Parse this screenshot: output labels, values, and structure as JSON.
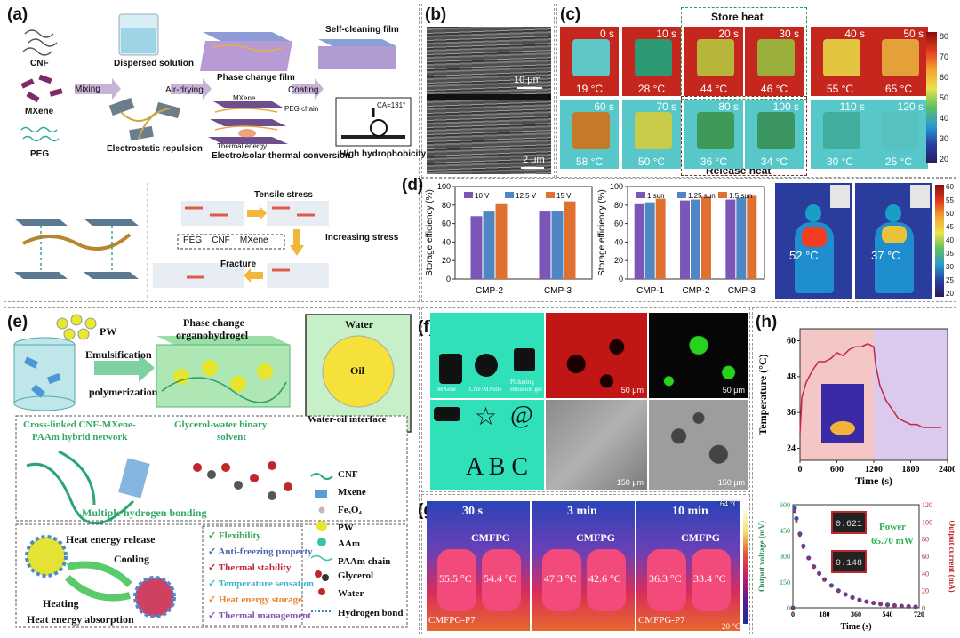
{
  "panel_a": {
    "label": "(a)",
    "materials": [
      "CNF",
      "MXene",
      "PEG"
    ],
    "steps": [
      "Mixing",
      "Air-drying",
      "Coating"
    ],
    "dispersed_solution": "Dispersed solution",
    "electrostatic": "Electrostatic repulsion",
    "phase_change_film": "Phase change film",
    "self_cleaning_film": "Self-cleaning film",
    "mxene_tag": "MXene",
    "peg_chain": "PEG chain",
    "thermal_energy": "Thermal energy",
    "conversion": "Electro/solar-thermal conversion",
    "contact_angle": "CA=131°",
    "hydrophobicity": "High hydrophobicity",
    "tensile": "Tensile stress",
    "increasing": "Increasing stress",
    "fracture": "Fracture",
    "legend": "PEG    CNF    MXene"
  },
  "panel_b": {
    "label": "(b)",
    "scale_top": "10 μm",
    "scale_bottom": "2 μm"
  },
  "panel_c": {
    "label": "(c)",
    "store": "Store heat",
    "release": "Release heat",
    "colorbar": [
      "80",
      "70",
      "60",
      "50",
      "40",
      "30",
      "20"
    ],
    "row1": [
      {
        "t": "0 s",
        "temp": "19 °C",
        "sq": "#5ec6c4"
      },
      {
        "t": "10 s",
        "temp": "28 °C",
        "sq": "#2e9a74"
      },
      {
        "t": "20 s",
        "temp": "44 °C",
        "sq": "#b6b63b"
      },
      {
        "t": "30 s",
        "temp": "46 °C",
        "sq": "#9aae3a"
      },
      {
        "t": "40 s",
        "temp": "55 °C",
        "sq": "#e2c43e"
      },
      {
        "t": "50 s",
        "temp": "65 °C",
        "sq": "#e4a13a"
      }
    ],
    "row2": [
      {
        "t": "60 s",
        "temp": "58 °C",
        "sq": "#c47a27"
      },
      {
        "t": "70 s",
        "temp": "50 °C",
        "sq": "#c9cc4b"
      },
      {
        "t": "80 s",
        "temp": "36 °C",
        "sq": "#3f9a58"
      },
      {
        "t": "100 s",
        "temp": "34 °C",
        "sq": "#3b9561"
      },
      {
        "t": "110 s",
        "temp": "30 °C",
        "sq": "#41ad9c"
      },
      {
        "t": "120 s",
        "temp": "25 °C",
        "sq": "#57c1c0"
      }
    ]
  },
  "panel_d": {
    "label": "(d)",
    "body_temps": [
      "52 °C",
      "37 °C"
    ],
    "body_bar": [
      "60",
      "55",
      "50",
      "45",
      "40",
      "35",
      "30",
      "25",
      "20"
    ]
  },
  "chart_data": [
    {
      "type": "bar",
      "title": "",
      "ylabel": "Storage efficiency (%)",
      "ylim": [
        0,
        100
      ],
      "yticks": [
        "0",
        "20",
        "40",
        "60",
        "80",
        "100"
      ],
      "categories": [
        "CMP-2",
        "CMP-3"
      ],
      "series": [
        {
          "name": "10 V",
          "color": "#7a56b8",
          "values": [
            68,
            73
          ]
        },
        {
          "name": "12.5 V",
          "color": "#4f86c4",
          "values": [
            73,
            74
          ]
        },
        {
          "name": "15 V",
          "color": "#e07030",
          "values": [
            81,
            84
          ]
        }
      ]
    },
    {
      "type": "bar",
      "title": "",
      "ylabel": "Storage efficiency (%)",
      "ylim": [
        0,
        100
      ],
      "yticks": [
        "0",
        "20",
        "40",
        "60",
        "80",
        "100"
      ],
      "categories": [
        "CMP-1",
        "CMP-2",
        "CMP-3"
      ],
      "series": [
        {
          "name": "1 sun",
          "color": "#7a56b8",
          "values": [
            81,
            85,
            86
          ]
        },
        {
          "name": "1.25 sun",
          "color": "#4f86c4",
          "values": [
            83,
            86,
            88
          ]
        },
        {
          "name": "1.5 sun",
          "color": "#e07030",
          "values": [
            87,
            89,
            90
          ]
        }
      ]
    },
    {
      "type": "line",
      "xlabel": "Time (s)",
      "ylabel": "Temperature (°C)",
      "xlim": [
        0,
        2400
      ],
      "ylim": [
        20,
        64
      ],
      "xticks": [
        "0",
        "600",
        "1200",
        "1800",
        "2400"
      ],
      "yticks": [
        "24",
        "36",
        "48",
        "60"
      ],
      "series": [
        {
          "name": "temperature",
          "color": "#c4283c",
          "x": [
            0,
            30,
            100,
            200,
            300,
            400,
            500,
            600,
            700,
            800,
            900,
            1000,
            1100,
            1200,
            1230,
            1300,
            1400,
            1500,
            1600,
            1700,
            1800,
            1900,
            2000,
            2100,
            2200,
            2300
          ],
          "y": [
            29,
            41,
            46,
            50,
            53,
            53,
            54,
            56,
            55,
            57,
            58,
            58,
            59,
            58,
            52,
            45,
            40,
            37,
            34,
            33,
            32,
            32,
            31,
            31,
            31,
            31
          ]
        }
      ]
    },
    {
      "type": "scatter",
      "xlabel": "Time (s)",
      "ylabel": "Output voltage (mV)",
      "y2label": "Output current (mA)",
      "xlim": [
        0,
        720
      ],
      "ylim": [
        0,
        600
      ],
      "y2lim": [
        0,
        120
      ],
      "xticks": [
        "0",
        "180",
        "360",
        "540",
        "720"
      ],
      "yticks": [
        "0",
        "150",
        "300",
        "450",
        "600"
      ],
      "y2ticks": [
        "0",
        "20",
        "40",
        "60",
        "80",
        "100",
        "120"
      ],
      "annotation": "Power 65.70 mW",
      "meter_readings": [
        "0.621",
        "0.148"
      ],
      "series": [
        {
          "name": "voltage",
          "color": "#3a4fb8",
          "x": [
            0,
            10,
            20,
            40,
            60,
            90,
            120,
            150,
            180,
            220,
            260,
            300,
            340,
            380,
            420,
            460,
            500,
            540,
            580,
            620,
            660,
            700
          ],
          "y": [
            0,
            580,
            520,
            430,
            360,
            290,
            240,
            200,
            165,
            130,
            100,
            78,
            60,
            46,
            36,
            28,
            22,
            17,
            13,
            10,
            8,
            6
          ]
        },
        {
          "name": "current",
          "color": "#c0272d",
          "x": [
            0,
            10,
            20,
            40,
            60,
            90,
            120,
            150,
            180,
            220,
            260,
            300,
            340,
            380,
            420,
            460,
            500,
            540,
            580,
            620,
            660,
            700
          ],
          "y": [
            0,
            112,
            100,
            84,
            70,
            57,
            47,
            39,
            32,
            25,
            19,
            15,
            12,
            9,
            7,
            5.5,
            4.3,
            3.3,
            2.6,
            2,
            1.6,
            1.2
          ]
        }
      ]
    }
  ],
  "panel_e": {
    "label": "(e)",
    "pw": "PW",
    "emul": "Emulsification",
    "poly": "polymerization",
    "pco_1": "Phase change",
    "pco_2": "organohydrogel",
    "water": "Water",
    "oil": "Oil",
    "interface": "Water-oil interface",
    "network_1": "Cross-linked CNF-MXene-",
    "network_2": "PAAm hybrid network",
    "solvent_1": "Glycerol-water binary",
    "solvent_2": "solvent",
    "hbond": "Multiple hydrogen bonding",
    "release": "Heat energy release",
    "cooling": "Cooling",
    "heating": "Heating",
    "absorption": "Heat energy absorption",
    "legend": [
      "CNF",
      "Mxene",
      "Fe₃O₄",
      "PW",
      "AAm",
      "PAAm chain",
      "Glycerol",
      "Water",
      "Hydrogen bond"
    ],
    "properties": [
      {
        "text": "Flexibility",
        "color": "#3aa655"
      },
      {
        "text": "Anti-freezing property",
        "color": "#4a67b5"
      },
      {
        "text": "Thermal stability",
        "color": "#c3263a"
      },
      {
        "text": "Temperature sensation",
        "color": "#3fb3c8"
      },
      {
        "text": "Heat energy storage",
        "color": "#e6842e"
      },
      {
        "text": "Thermal management",
        "color": "#8355b6"
      }
    ]
  },
  "panel_f": {
    "label": "(f)",
    "scale_50a": "50 μm",
    "scale_50b": "50 μm",
    "scale_150a": "150 μm",
    "scale_150b": "150 μm",
    "letters": "A B C",
    "caption1": "MXene",
    "caption2": "CNF/MXene",
    "caption3": "Pickering emulsion gel"
  },
  "panel_g": {
    "label": "(g)",
    "times": [
      "30 s",
      "3 min",
      "10 min"
    ],
    "name": "CMFPG",
    "bottom": "CMFPG-P7",
    "temps": [
      [
        "55.5 °C",
        "54.4 °C"
      ],
      [
        "47.3 °C",
        "42.6 °C"
      ],
      [
        "36.3 °C",
        "33.4 °C"
      ]
    ],
    "top_scale": "64 °C",
    "bottom_scale": "20 °C"
  },
  "panel_h": {
    "label": "(h)"
  }
}
